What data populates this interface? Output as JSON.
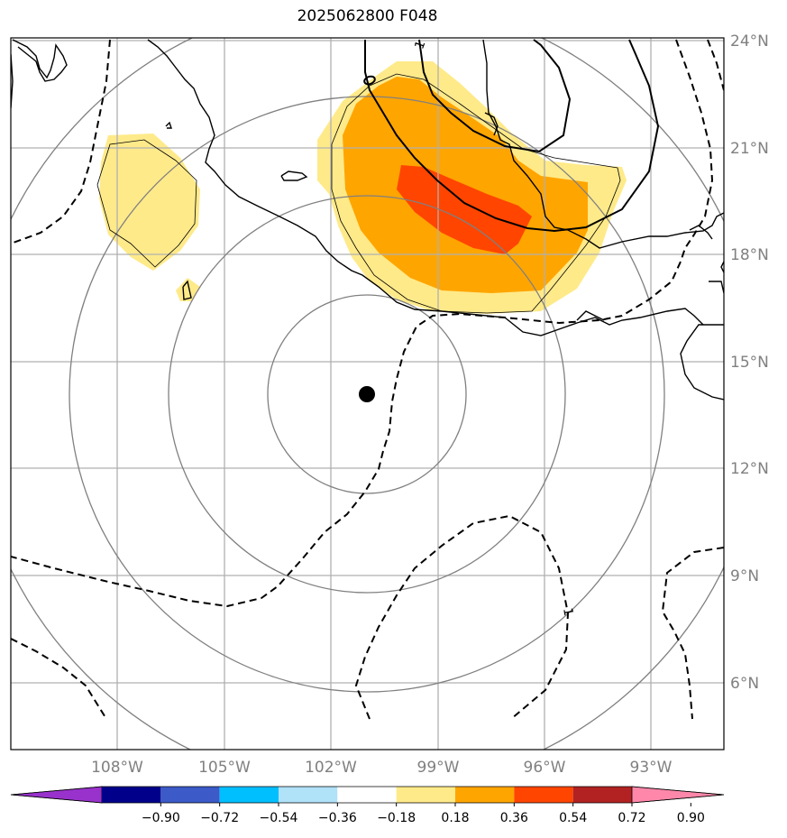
{
  "title": "2025062800 F048",
  "latitude_labels": [
    "24°N",
    "21°N",
    "18°N",
    "15°N",
    "12°N",
    "9°N",
    "6°N"
  ],
  "longitude_labels": [
    "108°W",
    "105°W",
    "102°W",
    "99°W",
    "96°W",
    "93°W"
  ],
  "contour_labels": [
    "1",
    "1"
  ],
  "colorbar": {
    "tick_labels": [
      "−0.90",
      "−0.72",
      "−0.54",
      "−0.36",
      "−0.18",
      "0.18",
      "0.36",
      "0.54",
      "0.72",
      "0.90"
    ],
    "colors": [
      "#9932cc",
      "#00008b",
      "#3c5ac8",
      "#00bfff",
      "#b0e2f8",
      "#ffffff",
      "#ffea8a",
      "#ffa500",
      "#ff4500",
      "#b22222",
      "#ff88aa"
    ]
  },
  "colors": {
    "grid": "#b0b0b0",
    "range_rings": "#808080",
    "coastline": "#000000",
    "fill_light": "#ffea8a",
    "fill_mid": "#ffa500",
    "fill_high": "#ff4500",
    "center_marker": "#000000"
  }
}
